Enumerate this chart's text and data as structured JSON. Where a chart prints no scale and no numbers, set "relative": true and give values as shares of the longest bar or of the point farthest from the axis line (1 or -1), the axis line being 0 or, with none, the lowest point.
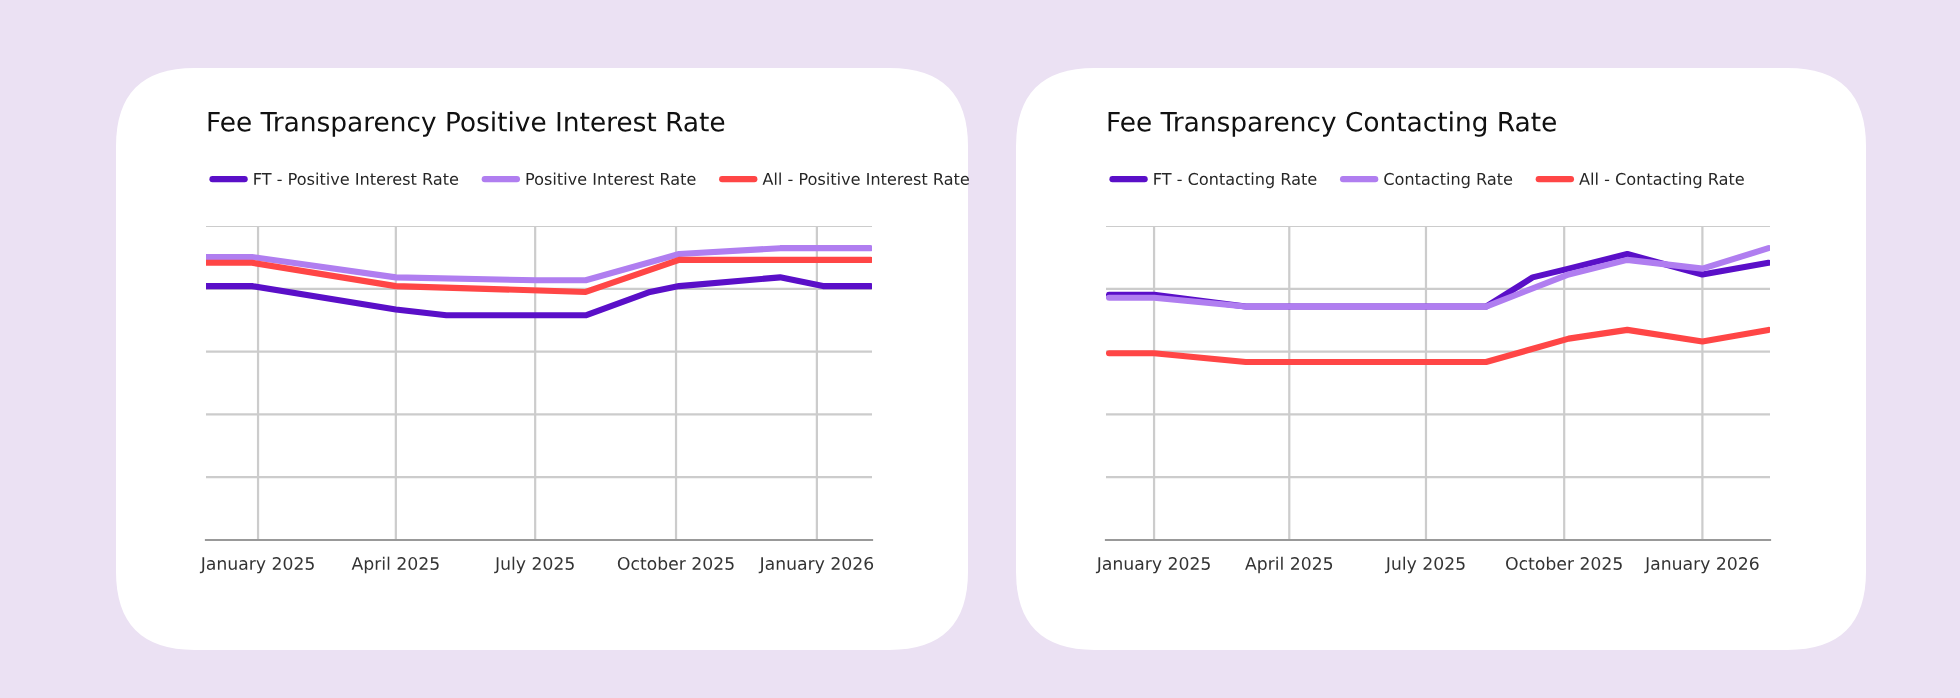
{
  "chart_data": [
    {
      "type": "line",
      "title": "Fee Transparency Positive Interest Rate",
      "relative": true,
      "grid": true,
      "legend": "top",
      "line_style": "solid",
      "marker": "none",
      "xlim": [
        "2024-11-28",
        "2026-02-06"
      ],
      "xticks": [
        {
          "value": "2025-01-01",
          "label": "January 2025"
        },
        {
          "value": "2025-04-01",
          "label": "April 2025"
        },
        {
          "value": "2025-07-01",
          "label": "July 2025"
        },
        {
          "value": "2025-10-01",
          "label": "October 2025"
        },
        {
          "value": "2026-01-01",
          "label": "January 2026"
        }
      ],
      "series": [
        {
          "name": "FT - Positive Interest Rate",
          "color": "#5a0fc8",
          "x": [
            "2024-11-28",
            "2024-12-28",
            "2025-04-01",
            "2025-05-04",
            "2025-08-03",
            "2025-09-14",
            "2025-10-03",
            "2025-12-08",
            "2026-01-05",
            "2026-02-05"
          ],
          "values": [
            0.87,
            0.87,
            0.79,
            0.77,
            0.77,
            0.85,
            0.87,
            0.9,
            0.87,
            0.87
          ]
        },
        {
          "name": "Positive Interest Rate",
          "color": "#b07ef0",
          "x": [
            "2024-11-28",
            "2024-12-28",
            "2025-04-01",
            "2025-07-02",
            "2025-08-03",
            "2025-10-03",
            "2025-12-08",
            "2026-02-05"
          ],
          "values": [
            0.97,
            0.97,
            0.9,
            0.89,
            0.89,
            0.98,
            1.0,
            1.0
          ]
        },
        {
          "name": "All - Positive Interest Rate",
          "color": "#ff4646",
          "x": [
            "2024-11-28",
            "2024-12-28",
            "2025-04-01",
            "2025-08-03",
            "2025-10-03",
            "2026-02-05"
          ],
          "values": [
            0.95,
            0.95,
            0.87,
            0.85,
            0.96,
            0.96
          ]
        }
      ]
    },
    {
      "type": "line",
      "title": "Fee Transparency Contacting Rate",
      "relative": true,
      "grid": true,
      "legend": "top",
      "line_style": "solid",
      "marker": "none",
      "xlim": [
        "2024-11-30",
        "2026-02-15"
      ],
      "xticks": [
        {
          "value": "2025-01-01",
          "label": "January 2025"
        },
        {
          "value": "2025-04-01",
          "label": "April 2025"
        },
        {
          "value": "2025-07-01",
          "label": "July 2025"
        },
        {
          "value": "2025-10-01",
          "label": "October 2025"
        },
        {
          "value": "2026-01-01",
          "label": "January 2026"
        }
      ],
      "series": [
        {
          "name": "FT - Contacting Rate",
          "color": "#5a0fc8",
          "x": [
            "2024-12-02",
            "2025-01-01",
            "2025-03-03",
            "2025-08-10",
            "2025-09-10",
            "2025-10-04",
            "2025-11-12",
            "2026-01-01",
            "2026-02-14"
          ],
          "values": [
            0.84,
            0.84,
            0.8,
            0.8,
            0.9,
            0.93,
            0.98,
            0.91,
            0.95
          ]
        },
        {
          "name": "Contacting Rate",
          "color": "#b07ef0",
          "x": [
            "2024-12-02",
            "2025-01-01",
            "2025-03-03",
            "2025-08-10",
            "2025-10-04",
            "2025-11-12",
            "2026-01-01",
            "2026-02-14"
          ],
          "values": [
            0.83,
            0.83,
            0.8,
            0.8,
            0.91,
            0.96,
            0.93,
            1.0
          ]
        },
        {
          "name": "All - Contacting Rate",
          "color": "#ff4646",
          "x": [
            "2024-12-02",
            "2025-01-01",
            "2025-03-03",
            "2025-08-10",
            "2025-10-04",
            "2025-11-12",
            "2026-01-01",
            "2026-02-14"
          ],
          "values": [
            0.64,
            0.64,
            0.61,
            0.61,
            0.69,
            0.72,
            0.68,
            0.72
          ]
        }
      ]
    }
  ]
}
